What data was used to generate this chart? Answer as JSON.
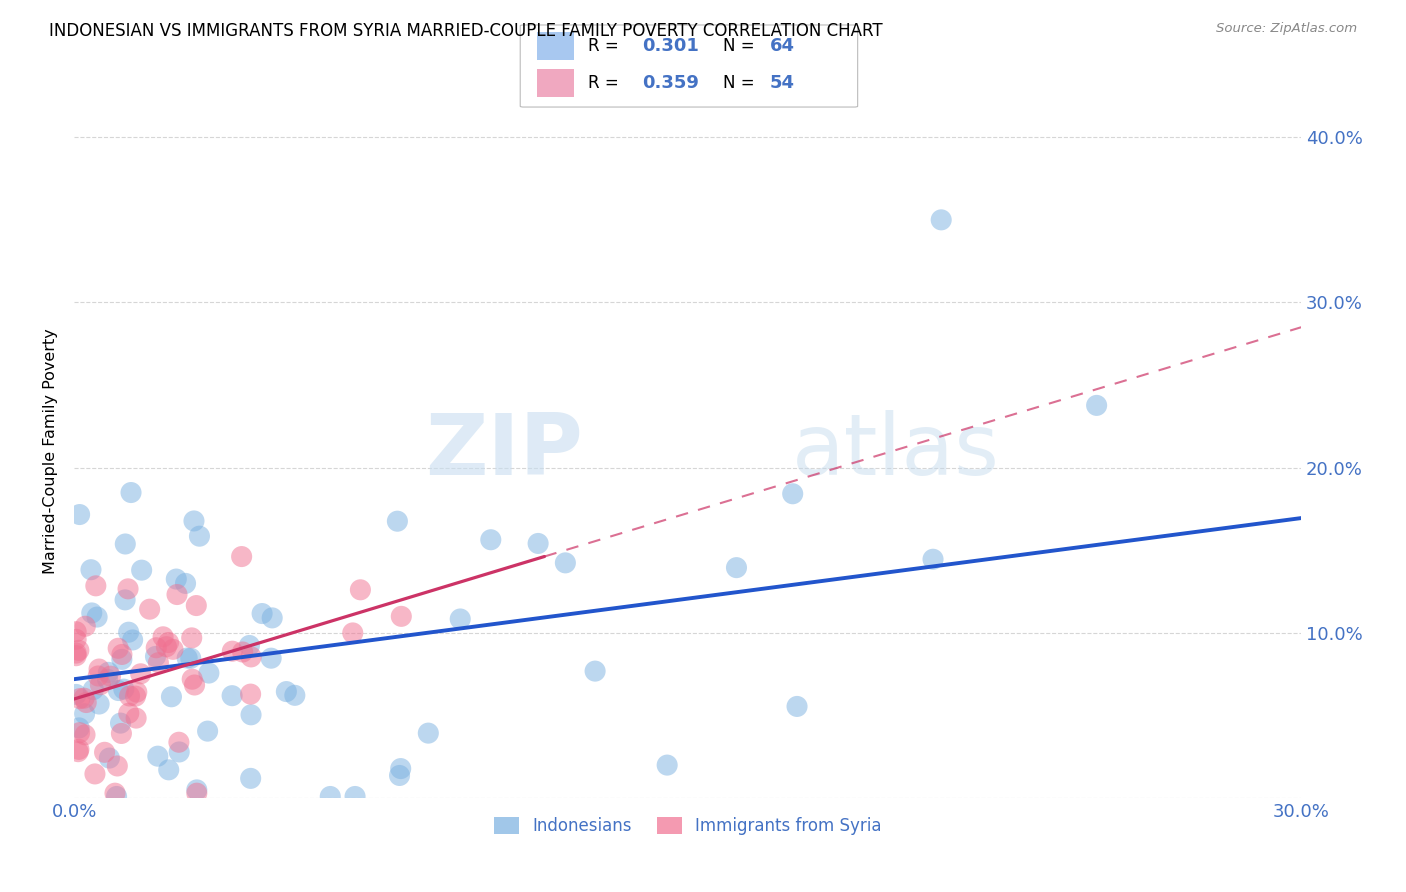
{
  "title": "INDONESIAN VS IMMIGRANTS FROM SYRIA MARRIED-COUPLE FAMILY POVERTY CORRELATION CHART",
  "source": "Source: ZipAtlas.com",
  "ylabel": "Married-Couple Family Poverty",
  "xlim": [
    0.0,
    0.3
  ],
  "ylim": [
    0.0,
    0.42
  ],
  "x_ticks": [
    0.0,
    0.05,
    0.1,
    0.15,
    0.2,
    0.25,
    0.3
  ],
  "y_ticks": [
    0.0,
    0.1,
    0.2,
    0.3,
    0.4
  ],
  "indonesian_color": "#7ab0e0",
  "syria_color": "#f07090",
  "indonesian_line_color": "#2255cc",
  "syria_line_color": "#cc3366",
  "indo_face_color": "#a8c8f0",
  "syria_face_color": "#f0a8c0",
  "watermark_zip": "ZIP",
  "watermark_atlas": "atlas",
  "indonesia_intercept": 0.072,
  "indonesia_slope": 0.325,
  "syria_intercept": 0.06,
  "syria_slope": 0.75,
  "legend_R1": "0.301",
  "legend_N1": "64",
  "legend_R2": "0.359",
  "legend_N2": "54",
  "legend_label1": "Indonesians",
  "legend_label2": "Immigrants from Syria",
  "accent_color": "#4472c4"
}
